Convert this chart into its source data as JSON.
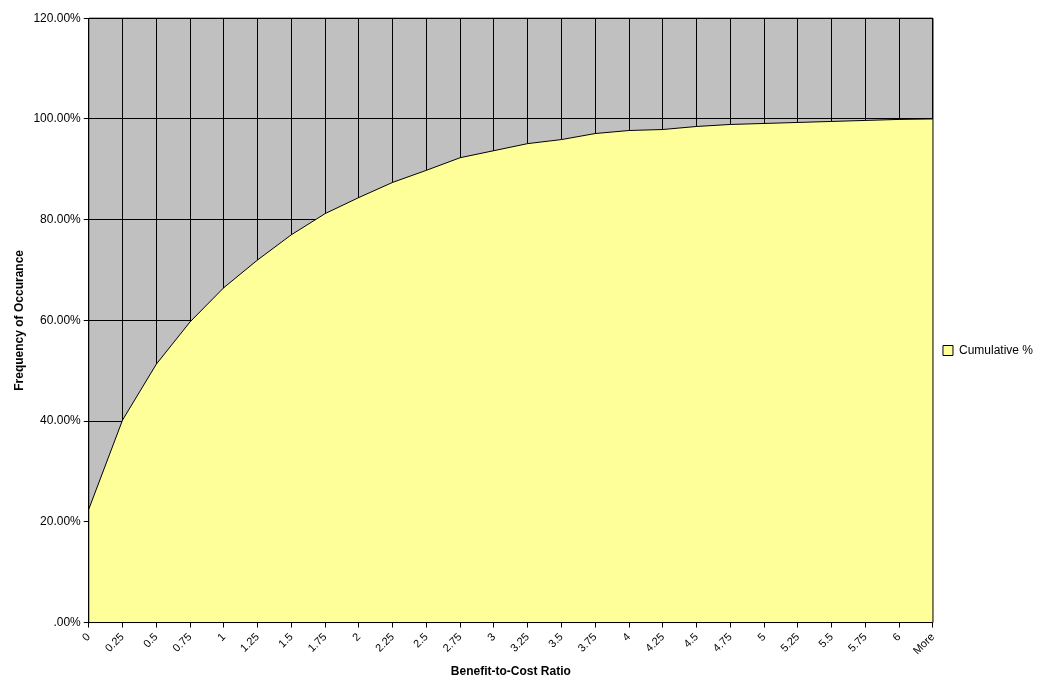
{
  "chart_data": {
    "type": "area",
    "xlabel": "Benefit-to-Cost Ratio",
    "ylabel": "Frequency of Occurance",
    "categories": [
      "0",
      "0.25",
      "0.5",
      "0.75",
      "1",
      "1.25",
      "1.5",
      "1.75",
      "2",
      "2.25",
      "2.5",
      "2.75",
      "3",
      "3.25",
      "3.5",
      "3.75",
      "4",
      "4.25",
      "4.5",
      "4.75",
      "5",
      "5.25",
      "5.5",
      "5.75",
      "6",
      "More"
    ],
    "series": [
      {
        "name": "Cumulative %",
        "color": "#ffff99",
        "values": [
          22.5,
          40.2,
          51.3,
          59.7,
          66.5,
          72,
          77,
          81.2,
          84.4,
          87.4,
          89.8,
          92.3,
          93.7,
          95.1,
          95.9,
          97.1,
          97.7,
          97.9,
          98.5,
          98.9,
          99.1,
          99.3,
          99.5,
          99.7,
          99.9,
          100
        ]
      }
    ],
    "ylim": [
      0,
      120
    ],
    "yticks": [
      {
        "value": 0,
        "label": ".00%"
      },
      {
        "value": 20,
        "label": "20.00%"
      },
      {
        "value": 40,
        "label": "40.00%"
      },
      {
        "value": 60,
        "label": "60.00%"
      },
      {
        "value": 80,
        "label": "80.00%"
      },
      {
        "value": 100,
        "label": "100.00%"
      },
      {
        "value": 120,
        "label": "120.00%"
      }
    ],
    "grid": true,
    "legend": "right",
    "marker": "none"
  }
}
